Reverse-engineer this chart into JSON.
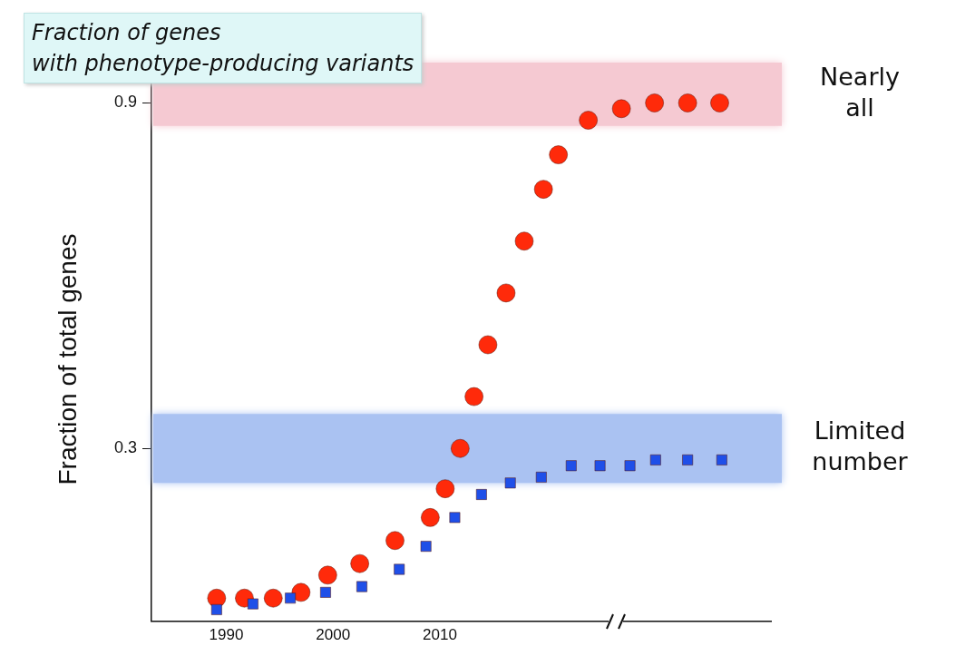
{
  "chart_data": {
    "type": "scatter",
    "title": "Fraction of genes\nwith phenotype-producing variants",
    "ylabel": "Fraction of total genes",
    "xlim": [
      1983,
      2041
    ],
    "xticks": [
      1990,
      2000,
      2010
    ],
    "ylim": [
      0,
      1
    ],
    "yticks": [
      0.3,
      0.9
    ],
    "grid": false,
    "legend": false,
    "bands": [
      {
        "axis": "y",
        "from": 0.86,
        "to": 0.97,
        "label": "Nearly\nall",
        "color": "#f5c9d2"
      },
      {
        "axis": "y",
        "from": 0.24,
        "to": 0.36,
        "label": "Limited\nnumber",
        "color": "#aac2f2"
      }
    ],
    "series": [
      {
        "marker": "square",
        "color": "#1f4fe8",
        "x": [
          1989.1,
          1992.5,
          1996.0,
          1999.3,
          2002.7,
          2006.2,
          2008.7,
          2011.4,
          2013.9,
          2016.6,
          2019.5,
          2022.3,
          2025.0,
          2027.8,
          2030.2,
          2033.2,
          2036.4
        ],
        "values": [
          0.02,
          0.03,
          0.04,
          0.05,
          0.06,
          0.09,
          0.13,
          0.18,
          0.22,
          0.24,
          0.25,
          0.27,
          0.27,
          0.27,
          0.28,
          0.28,
          0.28
        ]
      },
      {
        "marker": "circle",
        "color": "#ff2a0a",
        "x": [
          1989.1,
          1991.7,
          1994.4,
          1997.0,
          1999.5,
          2002.5,
          2005.8,
          2009.1,
          2010.5,
          2011.9,
          2013.2,
          2014.5,
          2016.2,
          2017.9,
          2019.7,
          2021.1,
          2023.9,
          2027.0,
          2030.1,
          2033.2,
          2036.2
        ],
        "values": [
          0.04,
          0.04,
          0.04,
          0.05,
          0.08,
          0.1,
          0.14,
          0.18,
          0.23,
          0.3,
          0.39,
          0.48,
          0.57,
          0.66,
          0.75,
          0.81,
          0.87,
          0.89,
          0.9,
          0.9,
          0.9
        ]
      }
    ]
  }
}
